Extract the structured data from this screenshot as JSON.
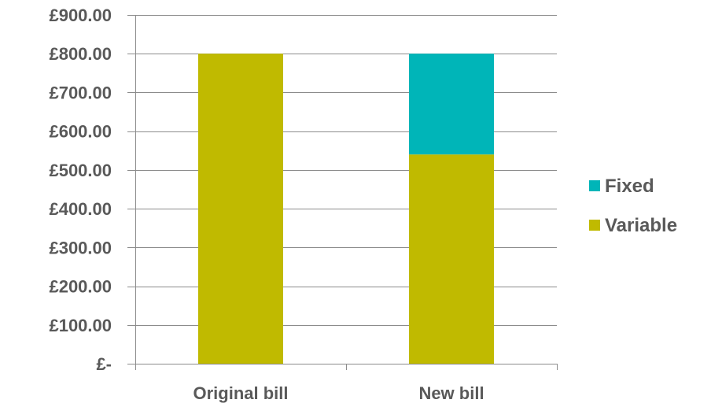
{
  "chart_data": {
    "type": "bar",
    "stacked": true,
    "categories": [
      "Original bill",
      "New bill"
    ],
    "series": [
      {
        "name": "Variable",
        "color": "#C0BA00",
        "values": [
          800,
          540
        ]
      },
      {
        "name": "Fixed",
        "color": "#00B5B8",
        "values": [
          0,
          260
        ]
      }
    ],
    "ylim": [
      0,
      900
    ],
    "yticks": [
      0,
      100,
      200,
      300,
      400,
      500,
      600,
      700,
      800,
      900
    ],
    "ytick_labels": [
      "£-",
      "£100.00",
      "£200.00",
      "£300.00",
      "£400.00",
      "£500.00",
      "£600.00",
      "£700.00",
      "£800.00",
      "£900.00"
    ],
    "grid": true,
    "legend_position": "right",
    "legend_order": [
      "Fixed",
      "Variable"
    ]
  }
}
